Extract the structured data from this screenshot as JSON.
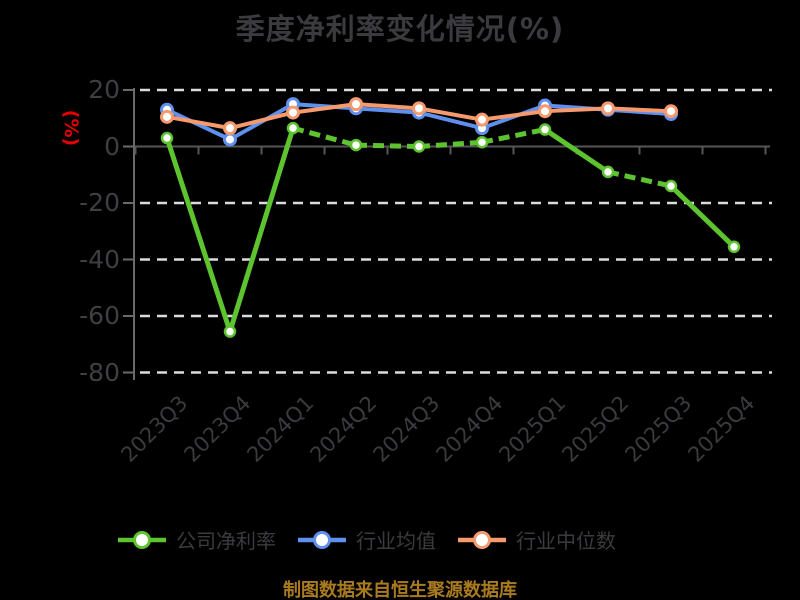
{
  "chart_data": {
    "type": "line",
    "title": "季度净利率变化情况(%)",
    "ylabel": "(%)",
    "footnote": "制图数据来自恒生聚源数据库",
    "categories": [
      "2023Q3",
      "2023Q4",
      "2024Q1",
      "2024Q2",
      "2024Q3",
      "2024Q4",
      "2025Q1",
      "2025Q2",
      "2025Q3",
      "2025Q4"
    ],
    "series": [
      {
        "name": "公司净利率",
        "color": "#5dc32e",
        "line_style": "dashed-when-flat",
        "values": [
          3,
          -65.5,
          6.5,
          0.5,
          0,
          1.5,
          6,
          -9,
          -14,
          -35.5
        ]
      },
      {
        "name": "行业均值",
        "color": "#6090ee",
        "line_style": "solid",
        "values": [
          13,
          2.5,
          15,
          13.5,
          12,
          6.5,
          14.5,
          13,
          11.5,
          null
        ]
      },
      {
        "name": "行业中位数",
        "color": "#f59a6d",
        "line_style": "solid",
        "values": [
          10.5,
          6.5,
          12,
          15,
          13.5,
          9.5,
          12.5,
          13.5,
          12.5,
          null
        ]
      }
    ],
    "yticks": [
      20,
      0,
      -20,
      -40,
      -60,
      -80
    ],
    "ylim": [
      -85,
      25
    ],
    "grid": "horizontal-dashed",
    "legend_position": "bottom",
    "colors": {
      "background": "#000000",
      "text": "#3b3b3f",
      "ylabel_red": "#e60100",
      "footnote_gold": "#a97b21",
      "gridline": "#dcdcdc",
      "zero_axis": "#565656",
      "y_axis": "#6a6a6a",
      "marker_fill": "#ffffff"
    }
  }
}
